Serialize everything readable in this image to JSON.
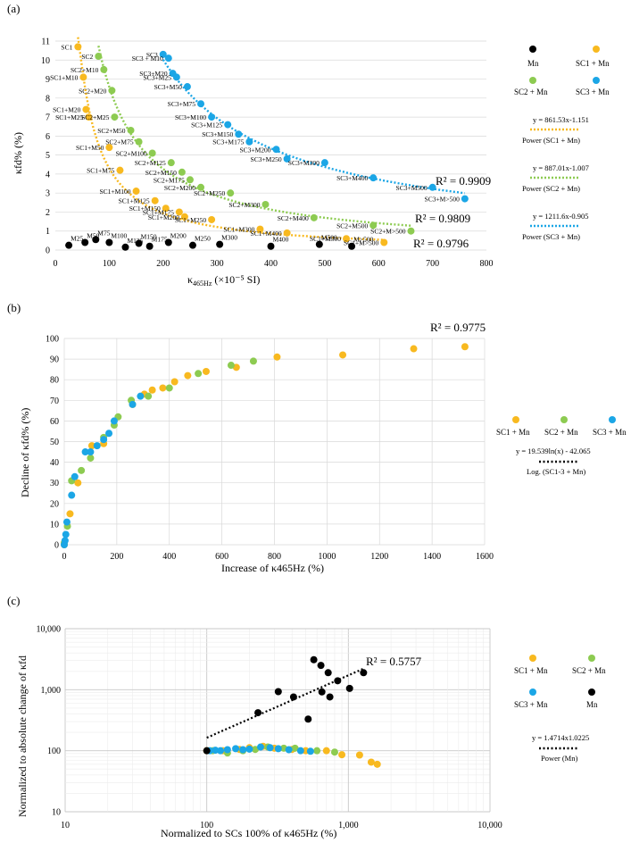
{
  "colors": {
    "sc1": "#F8B91F",
    "sc2": "#8DCB51",
    "sc3": "#1BA6E6",
    "mn": "#000000",
    "grid": "#d9d9d9"
  },
  "chart_data": [
    {
      "panel": "(a)",
      "type": "scatter",
      "xlabel_main": "κ",
      "xlabel_sub": "465Hz",
      "xlabel_rest": " (×10⁻⁵ SI)",
      "ylabel": "κfd% (%)",
      "xlim": [
        0,
        800
      ],
      "ylim": [
        0,
        11
      ],
      "xticks": [
        "0",
        "100",
        "200",
        "300",
        "400",
        "500",
        "600",
        "700",
        "800"
      ],
      "yticks": [
        "0",
        "1",
        "2",
        "3",
        "4",
        "5",
        "6",
        "7",
        "8",
        "9",
        "10",
        "11"
      ],
      "series": [
        {
          "key": "mn",
          "name": "Mn",
          "points": [
            [
              25,
              0.25,
              "M25"
            ],
            [
              55,
              0.4,
              "M50"
            ],
            [
              75,
              0.55,
              "M75"
            ],
            [
              100,
              0.4,
              "M100"
            ],
            [
              130,
              0.15,
              "M125"
            ],
            [
              155,
              0.35,
              "M150"
            ],
            [
              175,
              0.2,
              "M175"
            ],
            [
              210,
              0.4,
              "M200"
            ],
            [
              255,
              0.25,
              "M250"
            ],
            [
              305,
              0.3,
              "M300"
            ],
            [
              400,
              0.2,
              "M400"
            ],
            [
              490,
              0.3,
              "M500"
            ],
            [
              550,
              0.2,
              "M>500"
            ]
          ]
        },
        {
          "key": "sc1",
          "name": "SC1 + Mn",
          "points": [
            [
              42,
              10.7,
              "SC1"
            ],
            [
              52,
              9.1,
              "SC1+M10"
            ],
            [
              57,
              7.4,
              "SC1+M20"
            ],
            [
              62,
              7.0,
              "SC1+M25"
            ],
            [
              100,
              5.4,
              "SC1+M50"
            ],
            [
              120,
              4.2,
              "SC1+M75"
            ],
            [
              150,
              3.1,
              "SC1+M100"
            ],
            [
              185,
              2.6,
              "SC1+M125"
            ],
            [
              205,
              2.2,
              "SC1+M150"
            ],
            [
              230,
              2.0,
              "SC1+M175"
            ],
            [
              240,
              1.75,
              "SC1+M200"
            ],
            [
              290,
              1.6,
              "SC1+M250"
            ],
            [
              380,
              1.1,
              "SC1+M300"
            ],
            [
              430,
              0.9,
              "SC1+M400"
            ],
            [
              540,
              0.6,
              "SC1+M500"
            ],
            [
              610,
              0.4,
              "SC1+M>500"
            ]
          ]
        },
        {
          "key": "sc2",
          "name": "SC2 + Mn",
          "points": [
            [
              80,
              10.2,
              "SC2"
            ],
            [
              90,
              9.5,
              "SC2+M10"
            ],
            [
              105,
              8.4,
              "SC2+M20"
            ],
            [
              110,
              7.0,
              "SC2+M25"
            ],
            [
              140,
              6.3,
              "SC2+M50"
            ],
            [
              155,
              5.7,
              "SC2+M75"
            ],
            [
              180,
              5.1,
              "SC2+M100"
            ],
            [
              215,
              4.6,
              "SC2+M125"
            ],
            [
              235,
              4.1,
              "SC2+M150"
            ],
            [
              250,
              3.7,
              "SC2+M175"
            ],
            [
              270,
              3.3,
              "SC2+M200"
            ],
            [
              325,
              3.0,
              "SC2+M250"
            ],
            [
              390,
              2.4,
              "SC2+M300"
            ],
            [
              480,
              1.7,
              "SC2+M400"
            ],
            [
              590,
              1.3,
              "SC2+M500"
            ],
            [
              660,
              1.0,
              "SC2+M>500"
            ]
          ]
        },
        {
          "key": "sc3",
          "name": "SC3 + Mn",
          "points": [
            [
              200,
              10.3,
              "SC3"
            ],
            [
              210,
              10.1,
              "SC3 + M10"
            ],
            [
              218,
              9.3,
              "SC3+M20"
            ],
            [
              225,
              9.1,
              "SC3+M25"
            ],
            [
              245,
              8.6,
              "SC3+M50"
            ],
            [
              270,
              7.7,
              "SC3+M75"
            ],
            [
              290,
              7.0,
              "SC3+M100"
            ],
            [
              320,
              6.6,
              "SC3+M125"
            ],
            [
              340,
              6.1,
              "SC3+M150"
            ],
            [
              360,
              5.7,
              "SC3+M175"
            ],
            [
              410,
              5.3,
              "SC3+M200"
            ],
            [
              430,
              4.8,
              "SC3+M250"
            ],
            [
              500,
              4.6,
              "SC3+M300"
            ],
            [
              590,
              3.8,
              "SC3+M400"
            ],
            [
              700,
              3.3,
              "SC3+M500"
            ],
            [
              760,
              2.7,
              "SC3+M>500"
            ]
          ]
        }
      ],
      "fits": [
        {
          "key": "sc1",
          "a": 861.53,
          "b": -1.151,
          "r2": "R² = 0.9796",
          "equation": "y = 861.53x-1.151",
          "name": "Power (SC1 + Mn)"
        },
        {
          "key": "sc2",
          "a": 887.01,
          "b": -1.007,
          "r2": "R² = 0.9809",
          "equation": "y = 887.01x-1.007",
          "name": "Power (SC2 + Mn)"
        },
        {
          "key": "sc3",
          "a": 1211.6,
          "b": -0.905,
          "r2": "R² = 0.9909",
          "equation": "y = 1211.6x-0.905",
          "name": "Power (SC3 + Mn)"
        }
      ]
    },
    {
      "panel": "(b)",
      "type": "scatter",
      "xlabel": "Increase of κ465Hz (%)",
      "ylabel": "Decline of κfd% (%)",
      "xlim": [
        0,
        1600
      ],
      "ylim": [
        0,
        100
      ],
      "xticks": [
        "0",
        "200",
        "400",
        "600",
        "800",
        "1000",
        "1200",
        "1400",
        "1600"
      ],
      "yticks": [
        "0",
        "10",
        "20",
        "30",
        "40",
        "50",
        "60",
        "70",
        "80",
        "90",
        "100"
      ],
      "series": [
        {
          "key": "sc1",
          "name": "SC1 + Mn",
          "points": [
            [
              0,
              0
            ],
            [
              22,
              15
            ],
            [
              52,
              30
            ],
            [
              105,
              48
            ],
            [
              150,
              49
            ],
            [
              260,
              68
            ],
            [
              305,
              73
            ],
            [
              335,
              75
            ],
            [
              375,
              76
            ],
            [
              420,
              79
            ],
            [
              470,
              82
            ],
            [
              540,
              84
            ],
            [
              655,
              86
            ],
            [
              810,
              91
            ],
            [
              1060,
              92
            ],
            [
              1330,
              95
            ],
            [
              1525,
              96
            ]
          ]
        },
        {
          "key": "sc2",
          "name": "SC2 + Mn",
          "points": [
            [
              0,
              1
            ],
            [
              12,
              9
            ],
            [
              28,
              31
            ],
            [
              65,
              36
            ],
            [
              100,
              42
            ],
            [
              150,
              52
            ],
            [
              190,
              58
            ],
            [
              205,
              62
            ],
            [
              255,
              70
            ],
            [
              320,
              72
            ],
            [
              400,
              76
            ],
            [
              510,
              83
            ],
            [
              635,
              87
            ],
            [
              720,
              89
            ]
          ]
        },
        {
          "key": "sc3",
          "name": "SC3 + Mn",
          "points": [
            [
              0,
              0
            ],
            [
              3,
              2
            ],
            [
              6,
              5
            ],
            [
              10,
              11
            ],
            [
              28,
              24
            ],
            [
              40,
              33
            ],
            [
              80,
              45
            ],
            [
              100,
              45
            ],
            [
              125,
              48
            ],
            [
              150,
              51
            ],
            [
              170,
              54
            ],
            [
              190,
              60
            ],
            [
              260,
              68
            ],
            [
              290,
              72
            ]
          ]
        }
      ],
      "fit": {
        "r2": "R² = 0.9775",
        "equation": "y = 19.539ln(x) - 42.065",
        "name": "Log. (SC1-3 + Mn)"
      }
    },
    {
      "panel": "(c)",
      "type": "scatter",
      "xlabel": "Normalized to SCs 100% of κ465Hz (%)",
      "ylabel": "Normalized to absolute change of κfd",
      "xscale": "log",
      "yscale": "log",
      "xlim": [
        10,
        10000
      ],
      "ylim": [
        10,
        10000
      ],
      "xticks": [
        "10",
        "100",
        "1,000",
        "10,000"
      ],
      "yticks": [
        "10",
        "100",
        "1,000",
        "10,000"
      ],
      "series": [
        {
          "key": "sc1",
          "name": "SC1 + Mn",
          "points": [
            [
              100,
              100
            ],
            [
              130,
              100
            ],
            [
              170,
              105
            ],
            [
              200,
              112
            ],
            [
              250,
              118
            ],
            [
              300,
              110
            ],
            [
              400,
              105
            ],
            [
              500,
              100
            ],
            [
              700,
              100
            ],
            [
              900,
              86
            ],
            [
              1200,
              85
            ],
            [
              1450,
              65
            ],
            [
              1600,
              60
            ]
          ]
        },
        {
          "key": "sc2",
          "name": "SC2 + Mn",
          "points": [
            [
              110,
              100
            ],
            [
              140,
              92
            ],
            [
              180,
              100
            ],
            [
              220,
              105
            ],
            [
              270,
              115
            ],
            [
              350,
              110
            ],
            [
              420,
              110
            ],
            [
              600,
              100
            ],
            [
              800,
              95
            ]
          ]
        },
        {
          "key": "sc3",
          "name": "SC3 + Mn",
          "points": [
            [
              105,
              100
            ],
            [
              115,
              102
            ],
            [
              125,
              100
            ],
            [
              140,
              104
            ],
            [
              160,
              108
            ],
            [
              180,
              104
            ],
            [
              200,
              106
            ],
            [
              240,
              115
            ],
            [
              280,
              112
            ],
            [
              320,
              108
            ],
            [
              380,
              104
            ],
            [
              460,
              100
            ],
            [
              540,
              98
            ]
          ]
        },
        {
          "key": "mn",
          "name": "Mn",
          "points": [
            [
              100,
              100
            ],
            [
              230,
              420
            ],
            [
              320,
              930
            ],
            [
              410,
              760
            ],
            [
              520,
              330
            ],
            [
              570,
              3100
            ],
            [
              640,
              2500
            ],
            [
              650,
              920
            ],
            [
              720,
              1900
            ],
            [
              740,
              760
            ],
            [
              840,
              1400
            ],
            [
              1020,
              1050
            ],
            [
              1280,
              1900
            ]
          ]
        }
      ],
      "fit": {
        "a": 1.4714,
        "b": 1.0225,
        "r2": "R² = 0.5757",
        "equation": "y = 1.4714x1.0225",
        "name": "Power (Mn)"
      }
    }
  ]
}
